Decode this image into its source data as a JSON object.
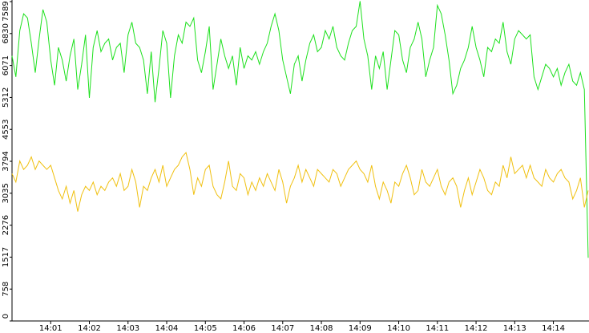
{
  "chart_data": {
    "type": "line",
    "categories": [
      null,
      null,
      null,
      null,
      null,
      null,
      null,
      null,
      null,
      null,
      "14:01",
      null,
      null,
      null,
      null,
      null,
      null,
      null,
      null,
      null,
      "14:02",
      null,
      null,
      null,
      null,
      null,
      null,
      null,
      null,
      null,
      "14:03",
      null,
      null,
      null,
      null,
      null,
      null,
      null,
      null,
      null,
      "14:04",
      null,
      null,
      null,
      null,
      null,
      null,
      null,
      null,
      null,
      "14:05",
      null,
      null,
      null,
      null,
      null,
      null,
      null,
      null,
      null,
      "14:06",
      null,
      null,
      null,
      null,
      null,
      null,
      null,
      null,
      null,
      "14:07",
      null,
      null,
      null,
      null,
      null,
      null,
      null,
      null,
      null,
      "14:08",
      null,
      null,
      null,
      null,
      null,
      null,
      null,
      null,
      null,
      "14:09",
      null,
      null,
      null,
      null,
      null,
      null,
      null,
      null,
      null,
      "14:10",
      null,
      null,
      null,
      null,
      null,
      null,
      null,
      null,
      null,
      "14:11",
      null,
      null,
      null,
      null,
      null,
      null,
      null,
      null,
      null,
      "14:12",
      null,
      null,
      null,
      null,
      null,
      null,
      null,
      null,
      null,
      "14:13",
      null,
      null,
      null,
      null,
      null,
      null,
      null,
      null,
      null,
      "14:14",
      null,
      null,
      null,
      null,
      null,
      null,
      null,
      null,
      null
    ],
    "series": [
      {
        "color": "#1de01d",
        "values": [
          6300,
          5800,
          6900,
          7300,
          7200,
          6600,
          5900,
          6700,
          7400,
          7100,
          6200,
          5600,
          6500,
          6200,
          5700,
          6300,
          6700,
          5500,
          6100,
          6800,
          5300,
          6500,
          6900,
          6400,
          6600,
          6700,
          6200,
          6500,
          6600,
          5900,
          6800,
          7100,
          6600,
          6500,
          6200,
          5400,
          6400,
          5200,
          6000,
          6900,
          6600,
          5300,
          6300,
          6800,
          6600,
          7100,
          7000,
          7200,
          6200,
          5900,
          6400,
          7000,
          5500,
          6100,
          6700,
          6300,
          6000,
          6300,
          5600,
          6500,
          6000,
          6300,
          6200,
          6400,
          6100,
          6400,
          6600,
          7000,
          7300,
          6900,
          6200,
          5800,
          5400,
          6100,
          6300,
          5700,
          6200,
          6600,
          6800,
          6400,
          6500,
          6900,
          6700,
          7000,
          6500,
          6300,
          6200,
          6600,
          6900,
          7000,
          7600,
          6700,
          6300,
          5500,
          6300,
          6000,
          6400,
          5500,
          6200,
          6900,
          6800,
          6200,
          5900,
          6500,
          6700,
          7100,
          6700,
          5800,
          6200,
          6500,
          7500,
          7300,
          6800,
          6200,
          5400,
          5600,
          6000,
          6200,
          6500,
          7000,
          6500,
          6200,
          5800,
          6500,
          6400,
          6700,
          6600,
          7100,
          6400,
          6100,
          6700,
          6900,
          6800,
          6700,
          6800,
          5800,
          5500,
          5800,
          6100,
          6000,
          5800,
          6000,
          5600,
          5900,
          6100,
          5700,
          5600,
          5900,
          5500,
          1500
        ]
      },
      {
        "color": "#f0c010",
        "values": [
          3500,
          3300,
          3800,
          3600,
          3700,
          3900,
          3600,
          3800,
          3700,
          3600,
          3700,
          3400,
          3100,
          2900,
          3200,
          2800,
          3100,
          2600,
          3000,
          3200,
          3100,
          3300,
          3000,
          3200,
          3100,
          3300,
          3400,
          3200,
          3500,
          3100,
          3200,
          3600,
          3300,
          2700,
          3200,
          3100,
          3400,
          3600,
          3300,
          3700,
          3200,
          3400,
          3600,
          3700,
          3900,
          4000,
          3600,
          3000,
          3400,
          3200,
          3600,
          3700,
          3200,
          3000,
          2900,
          3300,
          3800,
          3200,
          3100,
          3500,
          3400,
          3000,
          3300,
          3100,
          3400,
          3200,
          3500,
          3300,
          3100,
          3600,
          3300,
          2800,
          3200,
          3400,
          3700,
          3300,
          3600,
          3400,
          3200,
          3600,
          3500,
          3400,
          3300,
          3600,
          3500,
          3200,
          3400,
          3600,
          3700,
          3800,
          3600,
          3500,
          3300,
          3700,
          3200,
          2900,
          3300,
          3100,
          2800,
          3300,
          3200,
          3500,
          3700,
          3400,
          3000,
          3100,
          3600,
          3300,
          3200,
          3400,
          3600,
          3200,
          3000,
          3300,
          3400,
          3200,
          2700,
          3100,
          3400,
          3000,
          3300,
          3600,
          3400,
          3100,
          3000,
          3300,
          3200,
          3700,
          3400,
          3900,
          3500,
          3600,
          3700,
          3400,
          3700,
          3400,
          3300,
          3200,
          3600,
          3400,
          3300,
          3500,
          3600,
          3400,
          3300,
          2900,
          3100,
          3400,
          2700,
          3100
        ]
      }
    ],
    "ylim": [
      0,
      7589
    ],
    "yticks": [
      0,
      758,
      1517,
      2276,
      3035,
      3794,
      4553,
      5312,
      6071,
      6830,
      7589
    ]
  }
}
